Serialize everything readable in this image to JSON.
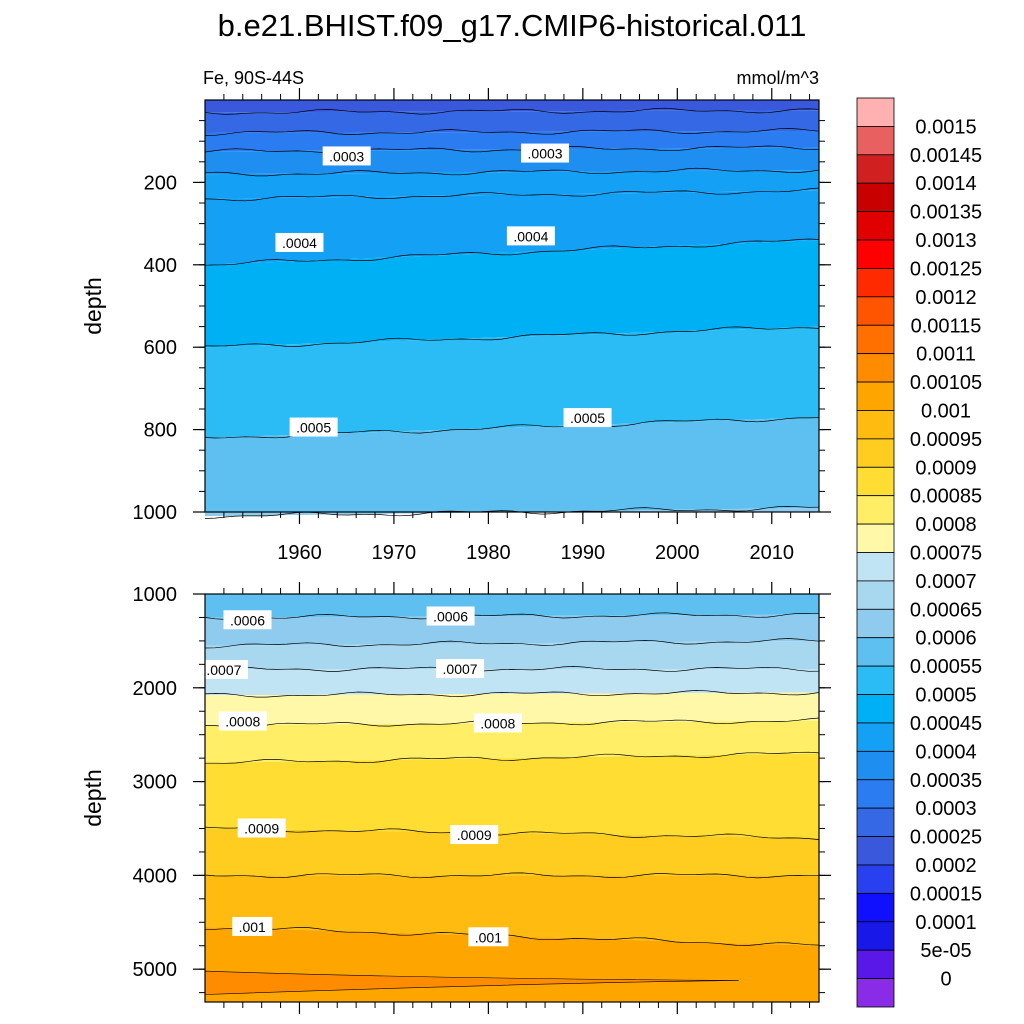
{
  "chart_data": [
    {
      "type": "contour",
      "title": "b.e21.BHIST.f09_g17.CMIP6-historical.011",
      "left_label": "Fe, 90S-44S",
      "right_label": "mmol/m^3",
      "ylabel": "depth",
      "xlim": [
        1950,
        2015
      ],
      "ylim": [
        0,
        1000
      ],
      "y_reversed": true,
      "x_ticks": [
        1960,
        1970,
        1980,
        1990,
        2000,
        2010
      ],
      "x_tick_labels": [
        "1960",
        "1970",
        "1980",
        "1990",
        "2000",
        "2010"
      ],
      "y_ticks": [
        200,
        400,
        600,
        800,
        1000
      ],
      "y_tick_labels": [
        "200",
        "400",
        "600",
        "800",
        "1000"
      ],
      "contour_lines": [
        {
          "depth_start": 30,
          "depth_end": 25
        },
        {
          "depth_start": 80,
          "depth_end": 75
        },
        {
          "depth_start": 125,
          "depth_end": 115
        },
        {
          "depth_start": 180,
          "depth_end": 170
        },
        {
          "depth_start": 240,
          "depth_end": 220
        },
        {
          "depth_start": 400,
          "depth_end": 340
        },
        {
          "depth_start": 600,
          "depth_end": 550
        },
        {
          "depth_start": 820,
          "depth_end": 770
        },
        {
          "depth_start": 1010,
          "depth_end": 990
        }
      ],
      "contour_labels": [
        {
          "text": ".0003",
          "year": 1965.0,
          "depth": 137
        },
        {
          "text": ".0003",
          "year": 1986.0,
          "depth": 130
        },
        {
          "text": ".0004",
          "year": 1960.0,
          "depth": 347
        },
        {
          "text": ".0004",
          "year": 1984.5,
          "depth": 331
        },
        {
          "text": ".0005",
          "year": 1961.5,
          "depth": 795
        },
        {
          "text": ".0005",
          "year": 1990.5,
          "depth": 772
        }
      ]
    },
    {
      "type": "contour",
      "ylabel": "depth",
      "xlim": [
        1950,
        2015
      ],
      "ylim": [
        1000,
        5350
      ],
      "y_reversed": true,
      "x_ticks": [
        1960,
        1970,
        1980,
        1990,
        2000,
        2010
      ],
      "y_ticks": [
        1000,
        2000,
        3000,
        4000,
        5000
      ],
      "y_tick_labels": [
        "1000",
        "2000",
        "3000",
        "4000",
        "5000"
      ],
      "contour_lines": [
        {
          "depth_start": 1250,
          "depth_end": 1220
        },
        {
          "depth_start": 1550,
          "depth_end": 1500
        },
        {
          "depth_start": 1800,
          "depth_end": 1800
        },
        {
          "depth_start": 2080,
          "depth_end": 2050
        },
        {
          "depth_start": 2400,
          "depth_end": 2350
        },
        {
          "depth_start": 2800,
          "depth_end": 2700
        },
        {
          "depth_start": 3500,
          "depth_end": 3600
        },
        {
          "depth_start": 4000,
          "depth_end": 4000
        },
        {
          "depth_start": 4550,
          "depth_end": 4750
        }
      ],
      "contour_labels": [
        {
          "text": ".0006",
          "year": 1954.5,
          "depth": 1280
        },
        {
          "text": ".0006",
          "year": 1976.0,
          "depth": 1240
        },
        {
          "text": ".0007",
          "year": 1952.0,
          "depth": 1810
        },
        {
          "text": ".0007",
          "year": 1977.0,
          "depth": 1800
        },
        {
          "text": ".0008",
          "year": 1954.0,
          "depth": 2360
        },
        {
          "text": ".0008",
          "year": 1981.0,
          "depth": 2380
        },
        {
          "text": ".0009",
          "year": 1956.0,
          "depth": 3500
        },
        {
          "text": ".0009",
          "year": 1978.5,
          "depth": 3570
        },
        {
          "text": ".001",
          "year": 1955.0,
          "depth": 4550
        },
        {
          "text": ".001",
          "year": 1980.0,
          "depth": 4660
        }
      ]
    }
  ],
  "colorbar": {
    "labels": [
      "0.0015",
      "0.00145",
      "0.0014",
      "0.00135",
      "0.0013",
      "0.00125",
      "0.0012",
      "0.00115",
      "0.0011",
      "0.00105",
      "0.001",
      "0.00095",
      "0.0009",
      "0.00085",
      "0.0008",
      "0.00075",
      "0.0007",
      "0.00065",
      "0.0006",
      "0.00055",
      "0.0005",
      "0.00045",
      "0.0004",
      "0.00035",
      "0.0003",
      "0.00025",
      "0.0002",
      "0.00015",
      "0.0001",
      "5e-05",
      "0"
    ],
    "colors": [
      "#ffb0b0",
      "#e86060",
      "#d02020",
      "#c80000",
      "#e00000",
      "#ff0000",
      "#ff2a00",
      "#ff5500",
      "#ff7000",
      "#ff8c00",
      "#ffa500",
      "#ffbb10",
      "#ffcc20",
      "#ffdd33",
      "#ffee66",
      "#fff8a8",
      "#c0e4f4",
      "#a8d8f0",
      "#8ecbee",
      "#5ec0f0",
      "#2bbcf5",
      "#00b0f5",
      "#14a0f5",
      "#1e8ef0",
      "#2a7cf0",
      "#3468e4",
      "#3a58dc",
      "#2840f0",
      "#1010ff",
      "#1818e8",
      "#5a18e8",
      "#8a2be8"
    ]
  }
}
